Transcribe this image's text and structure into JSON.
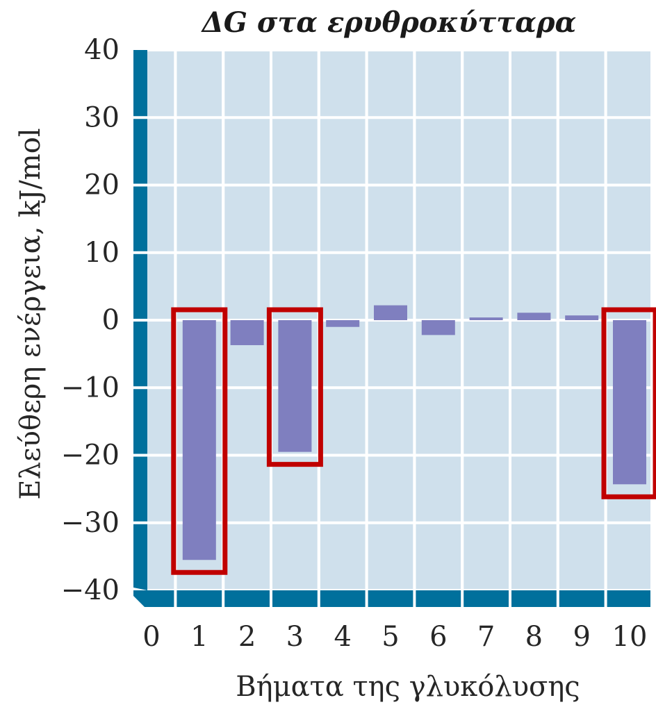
{
  "chart_data": {
    "type": "bar",
    "title": "ΔG στα ερυθροκύτταρα",
    "xlabel": "Βήματα της γλυκόλυσης",
    "ylabel": "Ελεύθερη ενέργεια, kJ/mol",
    "categories": [
      "0",
      "1",
      "2",
      "3",
      "4",
      "5",
      "6",
      "7",
      "8",
      "9",
      "10"
    ],
    "x": [
      1,
      2,
      3,
      4,
      5,
      6,
      7,
      8,
      9,
      10
    ],
    "values": [
      -35.5,
      -3.7,
      -19.5,
      -1.0,
      2.2,
      -2.2,
      0.4,
      1.1,
      0.7,
      -24.3
    ],
    "ylim": [
      -40,
      40
    ],
    "yticks": [
      40,
      30,
      20,
      10,
      0,
      -10,
      -20,
      -30,
      -40
    ],
    "ytick_labels": [
      "40",
      "30",
      "20",
      "10",
      "0",
      "−10",
      "−20",
      "−30",
      "−40"
    ],
    "grid": true,
    "highlighted_steps": [
      1,
      3,
      10
    ],
    "colors": {
      "bar": "#7f7fbf",
      "plot_background": "#cfe0ec",
      "grid": "#ffffff",
      "axis_band": "#00709c",
      "highlight_box": "#c00000"
    }
  }
}
